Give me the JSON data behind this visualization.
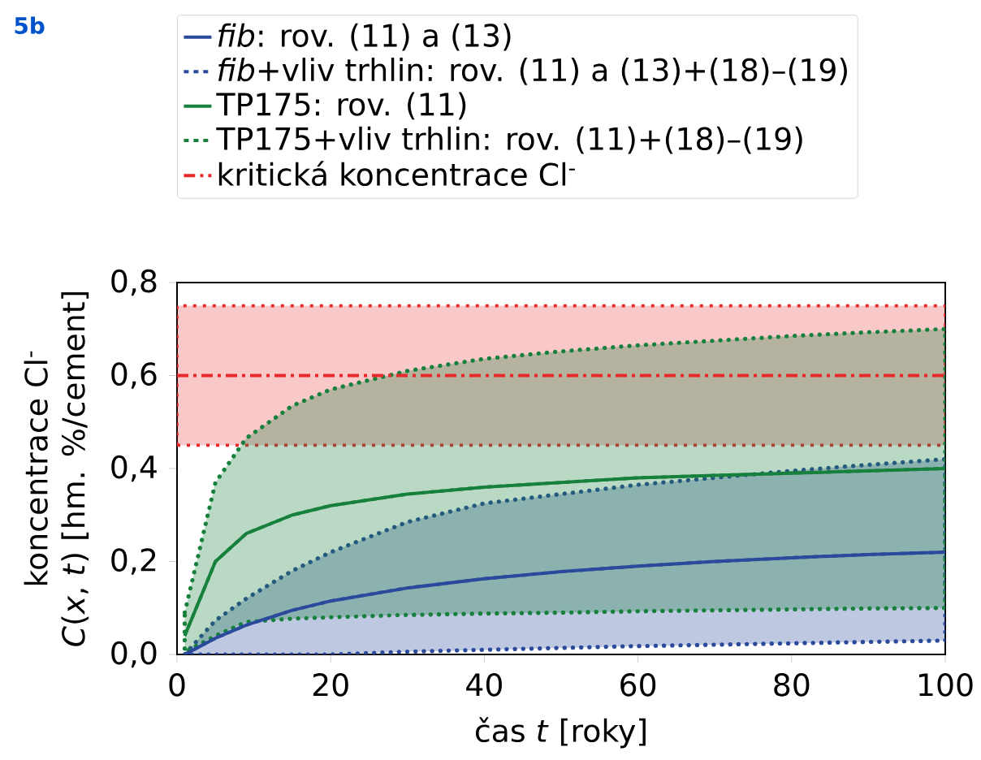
{
  "chart_data": {
    "type": "line",
    "annotations": [
      "5b"
    ],
    "xlabel": "čas *t* [roky]",
    "ylabel": "koncentrace Cl$^{-}$\n*C*(*x*, *t*) [hm. %/cement]",
    "xlim": [
      0,
      100
    ],
    "xticks": [
      0,
      20,
      40,
      60,
      80,
      100
    ],
    "ylim": [
      0,
      0.8
    ],
    "yticks": [
      {
        "value": 0,
        "label": "0,0"
      },
      {
        "value": 0.2,
        "label": "0,2"
      },
      {
        "value": 0.4,
        "label": "0,4"
      },
      {
        "value": 0.6,
        "label": "0,6"
      },
      {
        "value": 0.8,
        "label": "0,8"
      }
    ],
    "legend": "top",
    "series": [
      {
        "name": "*fib*: rov. (11) a (13)",
        "color": "#2b4a9c",
        "line_style": "solid",
        "x": [
          1,
          5,
          9,
          15,
          20,
          30,
          40,
          50,
          60,
          70,
          80,
          90,
          100
        ],
        "values": [
          0.0,
          0.035,
          0.063,
          0.095,
          0.115,
          0.143,
          0.163,
          0.178,
          0.19,
          0.2,
          0.208,
          0.215,
          0.22
        ]
      },
      {
        "name": "*fib*+vliv trhlin: rov. (11) a (13)+(18)–(19)",
        "color": "#2b4a9c",
        "line_style": "dashed",
        "x": [
          1,
          5,
          9,
          15,
          20,
          30,
          40,
          50,
          60,
          70,
          80,
          90,
          100
        ],
        "values": [
          0.0,
          0.035,
          0.063,
          0.095,
          0.115,
          0.143,
          0.163,
          0.178,
          0.19,
          0.2,
          0.208,
          0.215,
          0.22
        ],
        "lower": [
          0.0,
          0.0,
          0.0,
          0.0,
          0.0,
          0.006,
          0.01,
          0.014,
          0.018,
          0.021,
          0.024,
          0.027,
          0.03
        ],
        "upper": [
          0.0,
          0.073,
          0.12,
          0.18,
          0.22,
          0.285,
          0.325,
          0.345,
          0.365,
          0.38,
          0.395,
          0.408,
          0.42
        ]
      },
      {
        "name": "TP175: rov. (11)",
        "color": "#16803c",
        "line_style": "solid",
        "x": [
          1,
          5,
          9,
          15,
          20,
          30,
          40,
          50,
          60,
          70,
          80,
          90,
          100
        ],
        "values": [
          0.04,
          0.2,
          0.26,
          0.3,
          0.32,
          0.345,
          0.36,
          0.37,
          0.38,
          0.385,
          0.39,
          0.395,
          0.4
        ]
      },
      {
        "name": "TP175+vliv trhlin: rov. (11)+(18)–(19)",
        "color": "#16803c",
        "line_style": "dashed",
        "x": [
          1,
          5,
          9,
          15,
          20,
          30,
          40,
          50,
          60,
          70,
          80,
          90,
          100
        ],
        "values": [
          0.04,
          0.2,
          0.26,
          0.3,
          0.32,
          0.345,
          0.36,
          0.37,
          0.38,
          0.385,
          0.39,
          0.395,
          0.4
        ],
        "lower": [
          0.005,
          0.04,
          0.07,
          0.077,
          0.08,
          0.085,
          0.088,
          0.09,
          0.093,
          0.095,
          0.097,
          0.099,
          0.1
        ],
        "upper": [
          0.09,
          0.37,
          0.465,
          0.535,
          0.57,
          0.61,
          0.636,
          0.652,
          0.665,
          0.675,
          0.685,
          0.693,
          0.7
        ]
      }
    ],
    "bands": [
      {
        "axis": "y",
        "from": 0.45,
        "to": 0.75,
        "color": "#e8282b"
      }
    ],
    "ref_lines": [
      {
        "axis": "y",
        "value": 0.6,
        "label": "kritická koncentrace Cl$^{-}$",
        "color": "#e8282b",
        "line_style": "dashdot"
      }
    ]
  }
}
